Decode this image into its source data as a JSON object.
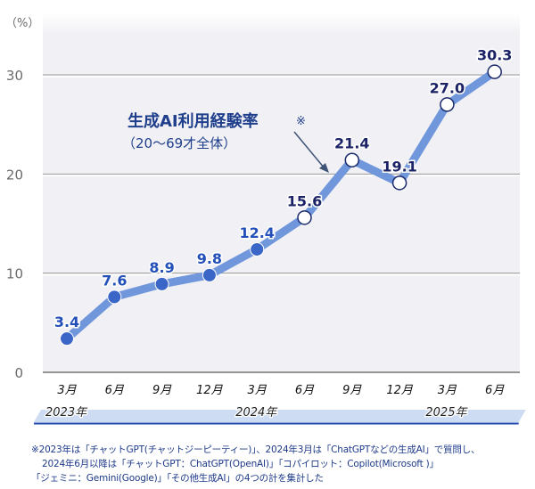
{
  "chart_data": {
    "type": "line",
    "title": "生成AI利用経験率※",
    "subtitle": "（20～69才全体）",
    "ylabel": "（%）",
    "xlabel": "",
    "ylim": [
      0,
      32
    ],
    "yticks": [
      0,
      10,
      20,
      30
    ],
    "grid": true,
    "categories": [
      "3月",
      "6月",
      "9月",
      "12月",
      "3月",
      "6月",
      "9月",
      "12月",
      "3月",
      "6月"
    ],
    "year_groups": [
      {
        "label": "2023年",
        "start": 0,
        "end": 3
      },
      {
        "label": "2024年",
        "start": 4,
        "end": 7
      },
      {
        "label": "2025年",
        "start": 8,
        "end": 9
      }
    ],
    "series": [
      {
        "name": "生成AI利用経験率（20～69才全体）",
        "values": [
          3.4,
          7.6,
          8.9,
          9.8,
          12.4,
          15.6,
          21.4,
          19.1,
          27.0,
          30.3
        ],
        "labels": [
          "3.4",
          "7.6",
          "8.9",
          "9.8",
          "12.4",
          "15.6",
          "21.4",
          "19.1",
          "27.0",
          "30.3"
        ],
        "marker_style": [
          "filled",
          "filled",
          "filled",
          "filled",
          "filled",
          "hollow",
          "hollow",
          "hollow",
          "hollow",
          "hollow"
        ]
      }
    ],
    "annotation": {
      "text_line1": "生成AI利用経験率",
      "mark": "※",
      "text_line2": "（20～69才全体）",
      "points_to_index": 6
    }
  },
  "colors": {
    "line": "#7096dc",
    "filled_marker": "#3a66c8",
    "filled_label": "#2350b8",
    "hollow_marker_stroke": "#1b2a6b",
    "hollow_label": "#1b2366",
    "annotation": "#1f3f8c",
    "axis_text": "#6b6b6b",
    "grid": "#9a9a9a",
    "plot_bg": "#f1f1f5",
    "year_band": "#cddcf3",
    "year_underline": "#1f48b0",
    "footnote": "#1e3a8a"
  },
  "footnote": {
    "line1": "※2023年は「チャットGPT(チャットジーピーティー)」、2024年3月は「ChatGPTなどの生成AI」で質問し、",
    "line2": "2024年6月以降は「チャットGPT：ChatGPT(OpenAI)」「コパイロット：Copilot(Microsoft )」",
    "line3": "「ジェミニ：Gemini(Google)」「その他生成AI」の4つの計を集計した"
  }
}
